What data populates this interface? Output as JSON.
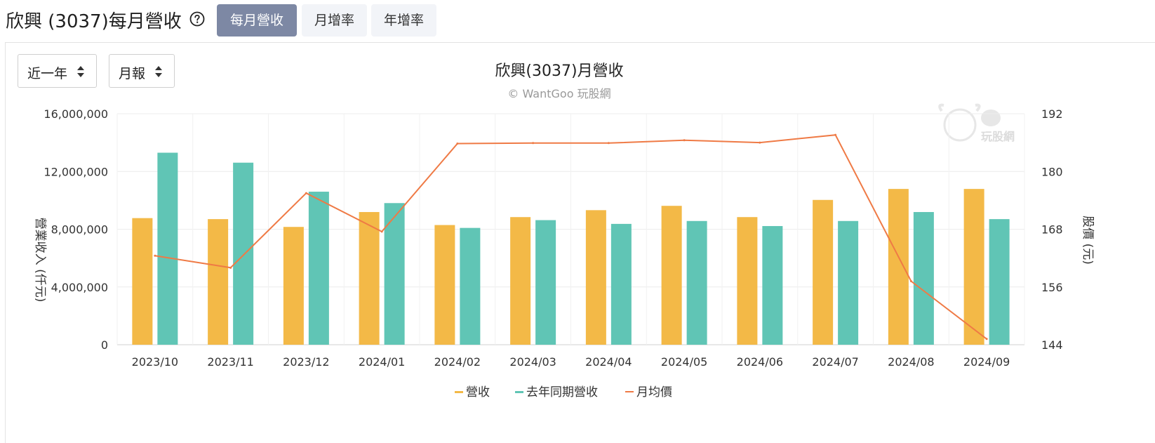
{
  "header": {
    "title": "欣興 (3037)每月營收",
    "help_icon": "question-circle-icon",
    "tabs": [
      {
        "label": "每月營收",
        "active": true
      },
      {
        "label": "月增率",
        "active": false
      },
      {
        "label": "年增率",
        "active": false
      }
    ]
  },
  "controls": {
    "range_select": {
      "value": "近一年",
      "icon": "sort-arrows-icon"
    },
    "period_select": {
      "value": "月報",
      "icon": "sort-arrows-icon"
    }
  },
  "colors": {
    "revenue": "#f3b947",
    "last_year": "#60c5b5",
    "price": "#ef7a45",
    "grid": "#ebebeb",
    "active_tab": "#7d88a4"
  },
  "chart_data": {
    "type": "bar",
    "title": "欣興(3037)月營收",
    "subtitle": "© WantGoo 玩股網",
    "watermark_text": "玩股網",
    "categories": [
      "2023/10",
      "2023/11",
      "2023/12",
      "2024/01",
      "2024/02",
      "2024/03",
      "2024/04",
      "2024/05",
      "2024/06",
      "2024/07",
      "2024/08",
      "2024/09"
    ],
    "series": [
      {
        "name": "營收",
        "type": "bar",
        "axis": "left",
        "color": "#f3b947",
        "values": [
          8770000,
          8700000,
          8160000,
          9190000,
          8290000,
          8840000,
          9320000,
          9620000,
          8840000,
          10030000,
          10790000,
          10790000
        ]
      },
      {
        "name": "去年同期營收",
        "type": "bar",
        "axis": "left",
        "color": "#60c5b5",
        "values": [
          13300000,
          12610000,
          10600000,
          9810000,
          8090000,
          8630000,
          8370000,
          8570000,
          8220000,
          8570000,
          9190000,
          8700000
        ]
      },
      {
        "name": "月均價",
        "type": "line",
        "axis": "right",
        "color": "#ef7a45",
        "values": [
          162.5,
          160,
          175.5,
          167.5,
          185.8,
          185.9,
          185.9,
          186.5,
          186,
          187.6,
          157.2,
          145.2
        ]
      }
    ],
    "y_left": {
      "label": "營業收入 (仟元)",
      "min": 0,
      "max": 16000000,
      "ticks": [
        0,
        4000000,
        8000000,
        12000000,
        16000000
      ],
      "tick_labels": [
        "0",
        "4,000,000",
        "8,000,000",
        "12,000,000",
        "16,000,000"
      ]
    },
    "y_right": {
      "label": "股價 (元)",
      "min": 144,
      "max": 192,
      "ticks": [
        144,
        156,
        168,
        180,
        192
      ],
      "tick_labels": [
        "144",
        "156",
        "168",
        "180",
        "192"
      ]
    },
    "grid": true,
    "legend": "bottom-center"
  }
}
